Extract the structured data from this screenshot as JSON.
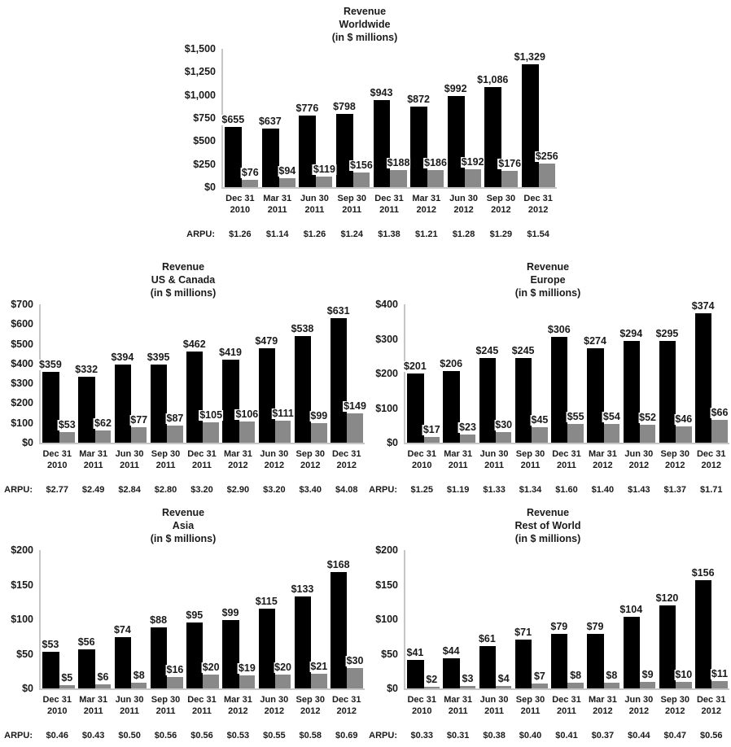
{
  "page": {
    "background": "#ffffff"
  },
  "colors": {
    "bar_primary": "#000000",
    "bar_secondary": "#898989",
    "axis_line": "#c6c6c6",
    "text": "#1a1a1a",
    "label_background": "#ffffff"
  },
  "chart_data": [
    {
      "id": "worldwide",
      "type": "bar",
      "title_lines": [
        "Revenue",
        "Worldwide",
        "(in $ millions)"
      ],
      "categories": [
        [
          "Dec 31",
          "2010"
        ],
        [
          "Mar 31",
          "2011"
        ],
        [
          "Jun 30",
          "2011"
        ],
        [
          "Sep 30",
          "2011"
        ],
        [
          "Dec 31",
          "2011"
        ],
        [
          "Mar 31",
          "2012"
        ],
        [
          "Jun 30",
          "2012"
        ],
        [
          "Sep 30",
          "2012"
        ],
        [
          "Dec 31",
          "2012"
        ]
      ],
      "series": [
        {
          "name": "primary",
          "color": "#000000",
          "values": [
            655,
            637,
            776,
            798,
            943,
            872,
            992,
            1086,
            1329
          ],
          "labels": [
            "$655",
            "$637",
            "$776",
            "$798",
            "$943",
            "$872",
            "$992",
            "$1,086",
            "$1,329"
          ]
        },
        {
          "name": "secondary",
          "color": "#898989",
          "values": [
            76,
            94,
            119,
            156,
            188,
            186,
            192,
            176,
            256
          ],
          "labels": [
            "$76",
            "$94",
            "$119",
            "$156",
            "$188",
            "$186",
            "$192",
            "$176",
            "$256"
          ]
        }
      ],
      "ylim": [
        0,
        1500
      ],
      "yticks": [
        "$0",
        "$250",
        "$500",
        "$750",
        "$1,000",
        "$1,250",
        "$1,500"
      ],
      "grid": false,
      "legend": "none",
      "arpu_label": "ARPU:",
      "arpu": [
        "$1.26",
        "$1.14",
        "$1.26",
        "$1.24",
        "$1.38",
        "$1.21",
        "$1.28",
        "$1.29",
        "$1.54"
      ]
    },
    {
      "id": "us-canada",
      "type": "bar",
      "title_lines": [
        "Revenue",
        "US & Canada",
        "(in $ millions)"
      ],
      "categories": [
        [
          "Dec 31",
          "2010"
        ],
        [
          "Mar 31",
          "2011"
        ],
        [
          "Jun 30",
          "2011"
        ],
        [
          "Sep 30",
          "2011"
        ],
        [
          "Dec 31",
          "2011"
        ],
        [
          "Mar 31",
          "2012"
        ],
        [
          "Jun 30",
          "2012"
        ],
        [
          "Sep 30",
          "2012"
        ],
        [
          "Dec 31",
          "2012"
        ]
      ],
      "series": [
        {
          "name": "primary",
          "color": "#000000",
          "values": [
            359,
            332,
            394,
            395,
            462,
            419,
            479,
            538,
            631
          ],
          "labels": [
            "$359",
            "$332",
            "$394",
            "$395",
            "$462",
            "$419",
            "$479",
            "$538",
            "$631"
          ]
        },
        {
          "name": "secondary",
          "color": "#898989",
          "values": [
            53,
            62,
            77,
            87,
            105,
            106,
            111,
            99,
            149
          ],
          "labels": [
            "$53",
            "$62",
            "$77",
            "$87",
            "$105",
            "$106",
            "$111",
            "$99",
            "$149"
          ]
        }
      ],
      "ylim": [
        0,
        700
      ],
      "yticks": [
        "$0",
        "$100",
        "$200",
        "$300",
        "$400",
        "$500",
        "$600",
        "$700"
      ],
      "grid": false,
      "legend": "none",
      "arpu_label": "ARPU:",
      "arpu": [
        "$2.77",
        "$2.49",
        "$2.84",
        "$2.80",
        "$3.20",
        "$2.90",
        "$3.20",
        "$3.40",
        "$4.08"
      ]
    },
    {
      "id": "europe",
      "type": "bar",
      "title_lines": [
        "Revenue",
        "Europe",
        "(in $ millions)"
      ],
      "categories": [
        [
          "Dec 31",
          "2010"
        ],
        [
          "Mar 31",
          "2011"
        ],
        [
          "Jun 30",
          "2011"
        ],
        [
          "Sep 30",
          "2011"
        ],
        [
          "Dec 31",
          "2011"
        ],
        [
          "Mar 31",
          "2012"
        ],
        [
          "Jun 30",
          "2012"
        ],
        [
          "Sep 30",
          "2012"
        ],
        [
          "Dec 31",
          "2012"
        ]
      ],
      "series": [
        {
          "name": "primary",
          "color": "#000000",
          "values": [
            201,
            206,
            245,
            245,
            306,
            274,
            294,
            295,
            374
          ],
          "labels": [
            "$201",
            "$206",
            "$245",
            "$245",
            "$306",
            "$274",
            "$294",
            "$295",
            "$374"
          ]
        },
        {
          "name": "secondary",
          "color": "#898989",
          "values": [
            17,
            23,
            30,
            45,
            55,
            54,
            52,
            46,
            66
          ],
          "labels": [
            "$17",
            "$23",
            "$30",
            "$45",
            "$55",
            "$54",
            "$52",
            "$46",
            "$66"
          ]
        }
      ],
      "ylim": [
        0,
        400
      ],
      "yticks": [
        "$0",
        "$100",
        "$200",
        "$300",
        "$400"
      ],
      "grid": false,
      "legend": "none",
      "arpu_label": "ARPU:",
      "arpu": [
        "$1.25",
        "$1.19",
        "$1.33",
        "$1.34",
        "$1.60",
        "$1.40",
        "$1.43",
        "$1.37",
        "$1.71"
      ]
    },
    {
      "id": "asia",
      "type": "bar",
      "title_lines": [
        "Revenue",
        "Asia",
        "(in $ millions)"
      ],
      "categories": [
        [
          "Dec 31",
          "2010"
        ],
        [
          "Mar 31",
          "2011"
        ],
        [
          "Jun 30",
          "2011"
        ],
        [
          "Sep 30",
          "2011"
        ],
        [
          "Dec 31",
          "2011"
        ],
        [
          "Mar 31",
          "2012"
        ],
        [
          "Jun 30",
          "2012"
        ],
        [
          "Sep 30",
          "2012"
        ],
        [
          "Dec 31",
          "2012"
        ]
      ],
      "series": [
        {
          "name": "primary",
          "color": "#000000",
          "values": [
            53,
            56,
            74,
            88,
            95,
            99,
            115,
            133,
            168
          ],
          "labels": [
            "$53",
            "$56",
            "$74",
            "$88",
            "$95",
            "$99",
            "$115",
            "$133",
            "$168"
          ]
        },
        {
          "name": "secondary",
          "color": "#898989",
          "values": [
            5,
            6,
            8,
            16,
            20,
            19,
            20,
            21,
            30
          ],
          "labels": [
            "$5",
            "$6",
            "$8",
            "$16",
            "$20",
            "$19",
            "$20",
            "$21",
            "$30"
          ]
        }
      ],
      "ylim": [
        0,
        200
      ],
      "yticks": [
        "$0",
        "$50",
        "$100",
        "$150",
        "$200"
      ],
      "grid": false,
      "legend": "none",
      "arpu_label": "ARPU:",
      "arpu": [
        "$0.46",
        "$0.43",
        "$0.50",
        "$0.56",
        "$0.56",
        "$0.53",
        "$0.55",
        "$0.58",
        "$0.69"
      ]
    },
    {
      "id": "rest-of-world",
      "type": "bar",
      "title_lines": [
        "Revenue",
        "Rest of World",
        "(in $ millions)"
      ],
      "categories": [
        [
          "Dec 31",
          "2010"
        ],
        [
          "Mar 31",
          "2011"
        ],
        [
          "Jun 30",
          "2011"
        ],
        [
          "Sep 30",
          "2011"
        ],
        [
          "Dec 31",
          "2011"
        ],
        [
          "Mar 31",
          "2012"
        ],
        [
          "Jun 30",
          "2012"
        ],
        [
          "Sep 30",
          "2012"
        ],
        [
          "Dec 31",
          "2012"
        ]
      ],
      "series": [
        {
          "name": "primary",
          "color": "#000000",
          "values": [
            41,
            44,
            61,
            71,
            79,
            79,
            104,
            120,
            156
          ],
          "labels": [
            "$41",
            "$44",
            "$61",
            "$71",
            "$79",
            "$79",
            "$104",
            "$120",
            "$156"
          ]
        },
        {
          "name": "secondary",
          "color": "#898989",
          "values": [
            2,
            3,
            4,
            7,
            8,
            8,
            9,
            10,
            11
          ],
          "labels": [
            "$2",
            "$3",
            "$4",
            "$7",
            "$8",
            "$8",
            "$9",
            "$10",
            "$11"
          ]
        }
      ],
      "ylim": [
        0,
        200
      ],
      "yticks": [
        "$0",
        "$50",
        "$100",
        "$150",
        "$200"
      ],
      "grid": false,
      "legend": "none",
      "arpu_label": "ARPU:",
      "arpu": [
        "$0.33",
        "$0.31",
        "$0.38",
        "$0.40",
        "$0.41",
        "$0.37",
        "$0.44",
        "$0.47",
        "$0.56"
      ]
    }
  ]
}
